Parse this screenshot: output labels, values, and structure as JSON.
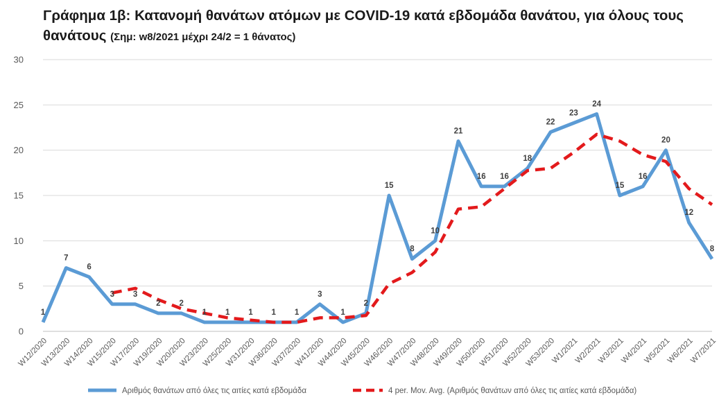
{
  "title": {
    "main": "Γράφημα 1β: Κατανομή θανάτων ατόμων με COVID-19 κατά εβδομάδα θανάτου, για όλους τους θανάτους",
    "note": "(Σημ: w8/2021 μέχρι 24/2 = 1 θάνατος)"
  },
  "chart_data": {
    "type": "line",
    "categories": [
      "W12/2020",
      "W13/2020",
      "W14/2020",
      "W15/2020",
      "W17/2020",
      "W19/2020",
      "W20/2020",
      "W23/2020",
      "W25/2020",
      "W31/2020",
      "W36/2020",
      "W37/2020",
      "W41/2020",
      "W44/2020",
      "W45/2020",
      "W46/2020",
      "W47/2020",
      "W48/2020",
      "W49/2020",
      "W50/2020",
      "W51/2020",
      "W52/2020",
      "W53/2020",
      "W1/2021",
      "W2/2021",
      "W3/2021",
      "W4/2021",
      "W5/2021",
      "W6/2021",
      "W7/2021"
    ],
    "ylim": [
      0,
      30
    ],
    "yticks": [
      0,
      5,
      10,
      15,
      20,
      25,
      30
    ],
    "grid": true,
    "legend_position": "bottom",
    "series": [
      {
        "name": "Αριθμός θανάτων από όλες τις αιτίες κατά εβδομάδα",
        "style": "solid",
        "color": "#5b9bd5",
        "values": [
          1,
          7,
          6,
          3,
          3,
          2,
          2,
          1,
          1,
          1,
          1,
          1,
          3,
          1,
          2,
          15,
          8,
          10,
          21,
          16,
          16,
          18,
          22,
          23,
          24,
          15,
          16,
          20,
          12,
          8
        ],
        "data_labels": [
          "1",
          "7",
          "6",
          "3",
          "3",
          "2",
          "2",
          "1",
          "1",
          "1",
          "1",
          "1",
          "3",
          "1",
          "2",
          "15",
          "8",
          "10",
          "21",
          "16",
          "16",
          "18",
          "22",
          "23",
          "24",
          "15",
          "16",
          "20",
          "12",
          "8"
        ]
      },
      {
        "name": "4 per. Mov. Avg. (Αριθμός θανάτων από όλες τις αιτίες κατά εβδομάδα)",
        "style": "dashed",
        "color": "#e31a1c",
        "values": [
          null,
          null,
          null,
          4.25,
          4.75,
          3.5,
          2.5,
          2,
          1.5,
          1.25,
          1,
          1,
          1.5,
          1.5,
          1.75,
          5.25,
          6.5,
          8.75,
          13.5,
          13.75,
          15.75,
          17.75,
          18,
          19.75,
          21.75,
          21,
          19.5,
          18.75,
          15.75,
          14
        ]
      }
    ]
  }
}
